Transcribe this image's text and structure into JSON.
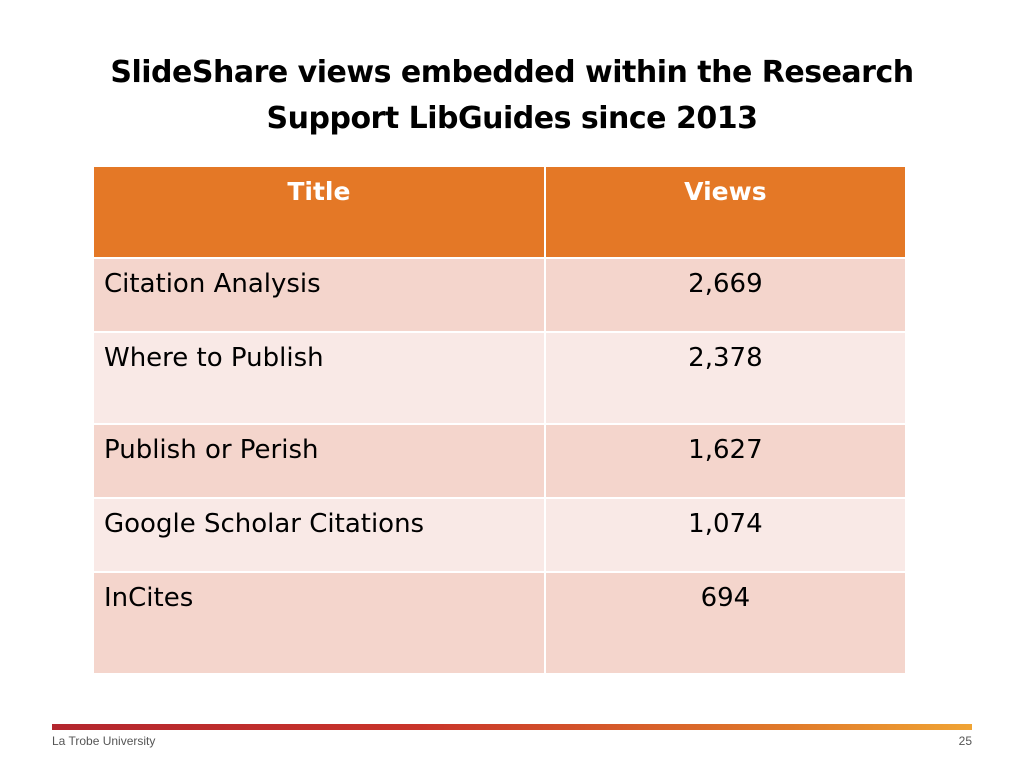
{
  "slide": {
    "title": "SlideShare views embedded within the Research Support LibGuides since 2013",
    "table": {
      "headers": [
        "Title",
        "Views"
      ],
      "rows": [
        {
          "title": "Citation Analysis",
          "views": "2,669"
        },
        {
          "title": "Where to Publish",
          "views": "2,378"
        },
        {
          "title": "Publish or Perish",
          "views": "1,627"
        },
        {
          "title": "Google Scholar Citations",
          "views": "1,074"
        },
        {
          "title": "InCites",
          "views": "694"
        }
      ]
    },
    "footer": {
      "organization": "La Trobe University",
      "page_number": "25"
    }
  },
  "colors": {
    "header_bg": "#e47826",
    "row_odd_bg": "#f4d5cc",
    "row_even_bg": "#f9e9e6"
  }
}
